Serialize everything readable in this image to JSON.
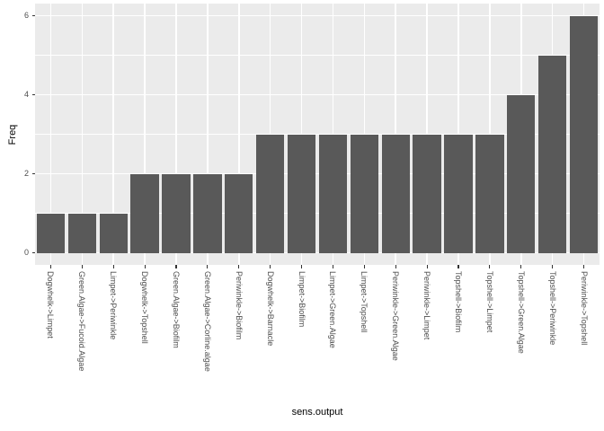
{
  "chart_data": {
    "type": "bar",
    "title": "",
    "xlabel": "sens.output",
    "ylabel": "Freq",
    "categories": [
      "Dogwhelk->Limpet",
      "Green.Algae->Fucoid.Algae",
      "Limpet->Periwinkle",
      "Dogwhelk->Topshell",
      "Green.Algae->Biofilm",
      "Green.Algae->Corline.algae",
      "Periwinkle->Biofilm",
      "Dogwhelk->Barnacle",
      "Limpet->Biofilm",
      "Limpet->Green.Algae",
      "Limpet->Topshell",
      "Periwinkle->Green.Algae",
      "Periwinkle->Limpet",
      "Topshell->Biofilm",
      "Topshell->Limpet",
      "Topshell->Green.Algae",
      "Topshell->Periwinkle",
      "Periwinkle->Topshell"
    ],
    "values": [
      1,
      1,
      1,
      2,
      2,
      2,
      2,
      3,
      3,
      3,
      3,
      3,
      3,
      3,
      3,
      4,
      5,
      6
    ],
    "ylim": [
      0,
      6
    ],
    "yticks": [
      0,
      2,
      4,
      6
    ],
    "ytick_labels": [
      "0",
      "2",
      "4",
      "6"
    ],
    "minor_gridlines": [
      1,
      3,
      5
    ],
    "grid": true,
    "legend": false,
    "bar_width_fraction": 0.9,
    "colors": {
      "bar": "#595959",
      "panel_background": "#EBEBEB",
      "gridline": "#FFFFFF",
      "tick_mark": "#333333",
      "axis_text": "#4D4D4D",
      "axis_title": "#000000",
      "figure_background": "#FFFFFF"
    }
  }
}
